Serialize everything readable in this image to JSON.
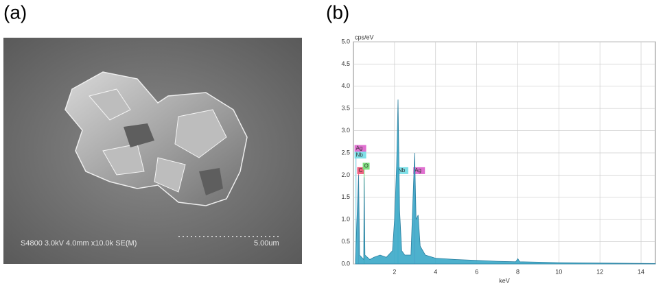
{
  "figure": {
    "panel_labels": [
      "(a)",
      "(b)"
    ],
    "sem_image": {
      "caption": "S4800 3.0kV 4.0mm x10.0k SE(M)",
      "scale_bar": "5.00um"
    }
  },
  "chart_data": {
    "type": "area",
    "ylabel": "cps/eV",
    "xlabel": "keV",
    "x": [
      0.1,
      0.25,
      0.3,
      0.5,
      0.52,
      0.56,
      0.8,
      1.0,
      1.3,
      1.6,
      1.9,
      2.0,
      2.1,
      2.17,
      2.25,
      2.35,
      2.5,
      2.8,
      2.98,
      3.05,
      3.15,
      3.25,
      3.5,
      4.0,
      5.0,
      6.0,
      7.0,
      7.9,
      8.0,
      8.1,
      9.0,
      10.0,
      12.0,
      14.7
    ],
    "values": [
      0.1,
      2.0,
      0.2,
      0.1,
      1.95,
      0.2,
      0.1,
      0.15,
      0.2,
      0.15,
      0.3,
      1.0,
      2.2,
      3.7,
      1.2,
      0.3,
      0.2,
      0.2,
      2.5,
      1.0,
      1.1,
      0.4,
      0.2,
      0.13,
      0.1,
      0.08,
      0.06,
      0.05,
      0.12,
      0.05,
      0.04,
      0.03,
      0.02,
      0.01
    ],
    "color": "#3aa8c8",
    "xlim": [
      0,
      14.7
    ],
    "ylim": [
      0,
      5
    ],
    "xticks": [
      2,
      4,
      6,
      8,
      10,
      12,
      14
    ],
    "yticks": [
      {
        "value": 0,
        "label": "0.0"
      },
      {
        "value": 0.5,
        "label": "0.5"
      },
      {
        "value": 1,
        "label": "1.0"
      },
      {
        "value": 1.5,
        "label": "1.5"
      },
      {
        "value": 2,
        "label": "2.0"
      },
      {
        "value": 2.5,
        "label": "2.5"
      },
      {
        "value": 3,
        "label": "3.0"
      },
      {
        "value": 3.5,
        "label": "3.5"
      },
      {
        "value": 4,
        "label": "4.0"
      },
      {
        "value": 4.5,
        "label": "4.5"
      },
      {
        "value": 5,
        "label": "5.0"
      }
    ],
    "grid": true,
    "element_markers": [
      {
        "element": "Ag",
        "energy": 0.12,
        "color": "#e070d0"
      },
      {
        "element": "Nb",
        "energy": 0.12,
        "color": "#7fe0e8"
      },
      {
        "element": "C",
        "energy": 0.25,
        "color": "#f06080"
      },
      {
        "element": "O",
        "energy": 0.52,
        "color": "#80e080"
      },
      {
        "element": "Nb",
        "energy": 2.17,
        "color": "#7fe0e8"
      },
      {
        "element": "Ag",
        "energy": 2.98,
        "color": "#e070d0"
      }
    ]
  }
}
